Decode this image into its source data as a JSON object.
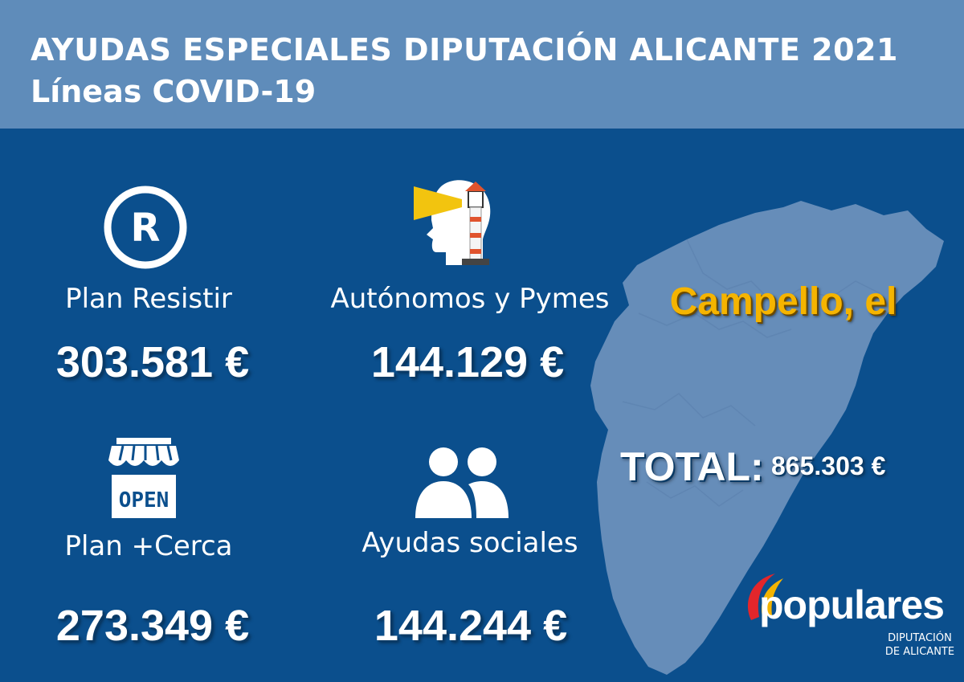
{
  "header": {
    "title": "AYUDAS ESPECIALES DIPUTACIÓN ALICANTE 2021",
    "subtitle": "Líneas COVID-19"
  },
  "items": [
    {
      "icon": "registered-icon",
      "label": "Plan Resistir",
      "amount": "303.581 €"
    },
    {
      "icon": "lighthouse-head-icon",
      "label": "Autónomos y Pymes",
      "amount": "144.129 €"
    },
    {
      "icon": "open-store-icon",
      "label": "Plan +Cerca",
      "amount": "273.349 €",
      "icon_text": "OPEN"
    },
    {
      "icon": "people-icon",
      "label": "Ayudas sociales",
      "amount": "144.244 €"
    }
  ],
  "town": "Campello, el",
  "total": {
    "label": "TOTAL:",
    "value": "865.303 €"
  },
  "logo": {
    "name": "populares",
    "sub_line1": "DIPUTACIÓN",
    "sub_line2": "DE ALICANTE"
  },
  "colors": {
    "background": "#0b4f8d",
    "header": "#5f8cba",
    "map": "#6f93bd",
    "town": "#f5b400",
    "lighthouse_beam": "#f2c40f",
    "lighthouse_roof": "#e0532d"
  }
}
